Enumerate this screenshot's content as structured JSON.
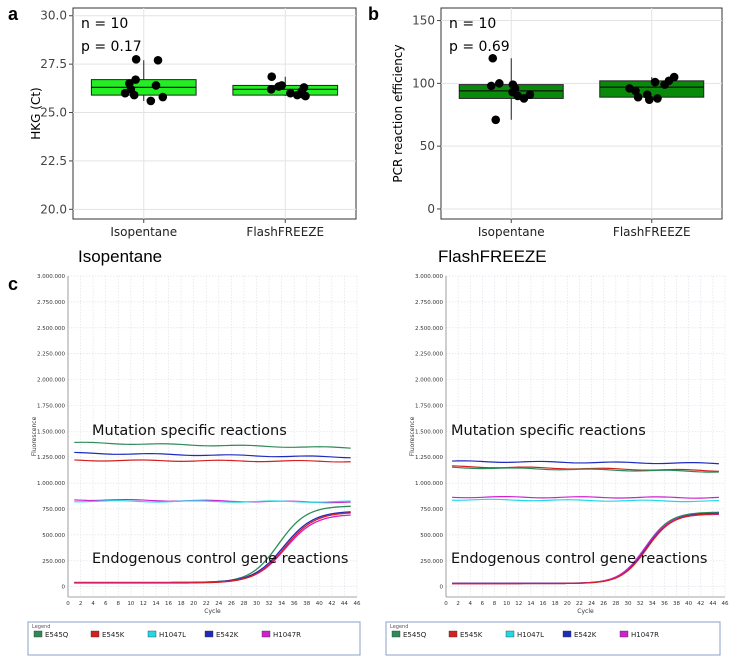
{
  "chart_data": [
    {
      "panel": "a",
      "type": "box",
      "ylabel": "HKG (Ct)",
      "ylim": [
        19.5,
        30.4
      ],
      "yticks": [
        20.0,
        22.5,
        25.0,
        27.5,
        30.0
      ],
      "ytick_labels": [
        "20.0",
        "22.5",
        "25.0",
        "27.5",
        "30.0"
      ],
      "stats_lines": [
        "n = 10",
        "p = 0.17"
      ],
      "categories": [
        "Isopentane",
        "FlashFREEZE"
      ],
      "box_color": "#22ee22",
      "boxes": [
        {
          "q1": 25.9,
          "median": 26.3,
          "q3": 26.7,
          "min": 25.6,
          "max": 27.7,
          "points": [
            25.6,
            25.8,
            25.9,
            26.0,
            26.2,
            26.4,
            26.5,
            26.7,
            27.7,
            27.75
          ]
        },
        {
          "q1": 25.9,
          "median": 26.2,
          "q3": 26.4,
          "min": 25.85,
          "max": 26.85,
          "points": [
            25.85,
            25.9,
            25.95,
            26.0,
            26.1,
            26.2,
            26.3,
            26.35,
            26.4,
            26.85
          ]
        }
      ]
    },
    {
      "panel": "b",
      "type": "box",
      "ylabel": "PCR reaction efficiency",
      "ylim": [
        -8,
        160
      ],
      "yticks": [
        0,
        50,
        100,
        150
      ],
      "ytick_labels": [
        "0",
        "50",
        "100",
        "150"
      ],
      "stats_lines": [
        "n = 10",
        "p = 0.69"
      ],
      "categories": [
        "Isopentane",
        "FlashFREEZE"
      ],
      "box_color": "#0a8a0a",
      "boxes": [
        {
          "q1": 88,
          "median": 94,
          "q3": 99,
          "min": 71,
          "max": 120,
          "points": [
            71,
            88,
            90,
            91,
            93,
            96,
            98,
            99,
            100,
            120
          ]
        },
        {
          "q1": 89,
          "median": 97,
          "q3": 102,
          "min": 87,
          "max": 105,
          "points": [
            87,
            88,
            89,
            91,
            94,
            96,
            99,
            101,
            102,
            105
          ]
        }
      ]
    },
    {
      "panel": "c-left",
      "type": "line",
      "title": "Isopentane",
      "xlabel": "Cycle",
      "ylabel": "Fluorescence",
      "xlim": [
        0,
        46
      ],
      "xticks": [
        0,
        2,
        4,
        6,
        8,
        10,
        12,
        14,
        16,
        18,
        20,
        22,
        24,
        26,
        28,
        30,
        32,
        34,
        36,
        38,
        40,
        42,
        44,
        46
      ],
      "ylim": [
        -100000,
        3000000
      ],
      "yticks": [
        0,
        250000,
        500000,
        750000,
        1000000,
        1250000,
        1500000,
        1750000,
        2000000,
        2250000,
        2500000,
        2750000,
        3000000
      ],
      "ytick_labels": [
        "0",
        "250.000",
        "500.000",
        "750.000",
        "1.000.000",
        "1.250.000",
        "1.500.000",
        "1.750.000",
        "2.000.000",
        "2.250.000",
        "2.500.000",
        "2.750.000",
        "3.000.000"
      ],
      "flat_series": [
        {
          "name": "E545Q",
          "color": "#2e8b57",
          "start": 1390000,
          "end": 1340000
        },
        {
          "name": "E542K",
          "color": "#1f2bbd",
          "start": 1290000,
          "end": 1250000
        },
        {
          "name": "E545K",
          "color": "#d62020",
          "start": 1220000,
          "end": 1210000
        },
        {
          "name": "H1047R",
          "color": "#d020d0",
          "start": 840000,
          "end": 815000
        },
        {
          "name": "H1047L",
          "color": "#22d8e8",
          "start": 825000,
          "end": 820000
        }
      ],
      "sigmoid_series": [
        {
          "name": "E545Q",
          "color": "#2e8b57",
          "base": 40000,
          "top": 780000,
          "mid": 33.5,
          "k": 0.45
        },
        {
          "name": "E542K",
          "color": "#1f2bbd",
          "base": 40000,
          "top": 730000,
          "mid": 34.3,
          "k": 0.42
        },
        {
          "name": "H1047R",
          "color": "#d020d0",
          "base": 38000,
          "top": 700000,
          "mid": 34.6,
          "k": 0.42
        },
        {
          "name": "E545K",
          "color": "#d62020",
          "base": 35000,
          "top": 720000,
          "mid": 34.5,
          "k": 0.42
        }
      ],
      "annotations": [
        "Mutation specific reactions",
        "Endogenous control gene reactions"
      ]
    },
    {
      "panel": "c-right",
      "type": "line",
      "title": "FlashFREEZE",
      "xlabel": "Cycle",
      "ylabel": "Fluorescence",
      "xlim": [
        0,
        46
      ],
      "xticks": [
        0,
        2,
        4,
        6,
        8,
        10,
        12,
        14,
        16,
        18,
        20,
        22,
        24,
        26,
        28,
        30,
        32,
        34,
        36,
        38,
        40,
        42,
        44,
        46
      ],
      "ylim": [
        -100000,
        3000000
      ],
      "yticks": [
        0,
        250000,
        500000,
        750000,
        1000000,
        1250000,
        1500000,
        1750000,
        2000000,
        2250000,
        2500000,
        2750000,
        3000000
      ],
      "ytick_labels": [
        "0",
        "250.000",
        "500.000",
        "750.000",
        "1.000.000",
        "1.250.000",
        "1.500.000",
        "1.750.000",
        "2.000.000",
        "2.250.000",
        "2.500.000",
        "2.750.000",
        "3.000.000"
      ],
      "flat_series": [
        {
          "name": "E542K",
          "color": "#1f2bbd",
          "start": 1210000,
          "end": 1190000
        },
        {
          "name": "E545K",
          "color": "#d62020",
          "start": 1160000,
          "end": 1120000
        },
        {
          "name": "E545Q",
          "color": "#2e8b57",
          "start": 1150000,
          "end": 1110000
        },
        {
          "name": "H1047R",
          "color": "#d020d0",
          "start": 865000,
          "end": 860000
        },
        {
          "name": "H1047L",
          "color": "#22d8e8",
          "start": 840000,
          "end": 825000
        }
      ],
      "sigmoid_series": [
        {
          "name": "E545Q",
          "color": "#2e8b57",
          "base": 30000,
          "top": 720000,
          "mid": 32.8,
          "k": 0.48
        },
        {
          "name": "E542K",
          "color": "#1f2bbd",
          "base": 32000,
          "top": 710000,
          "mid": 33.0,
          "k": 0.48
        },
        {
          "name": "H1047R",
          "color": "#d020d0",
          "base": 30000,
          "top": 700000,
          "mid": 32.7,
          "k": 0.48
        },
        {
          "name": "E545K",
          "color": "#d62020",
          "base": 30000,
          "top": 705000,
          "mid": 33.1,
          "k": 0.48
        }
      ],
      "annotations": [
        "Mutation specific reactions",
        "Endogenous control gene reactions"
      ]
    }
  ],
  "panel_labels": {
    "a": "a",
    "b": "b",
    "c": "c"
  },
  "legend": {
    "title": "Legend",
    "items": [
      {
        "name": "E545Q",
        "color": "#2e8b57"
      },
      {
        "name": "E545K",
        "color": "#d62020"
      },
      {
        "name": "H1047L",
        "color": "#22d8e8"
      },
      {
        "name": "E542K",
        "color": "#1f2bbd"
      },
      {
        "name": "H1047R",
        "color": "#d020d0"
      }
    ]
  }
}
